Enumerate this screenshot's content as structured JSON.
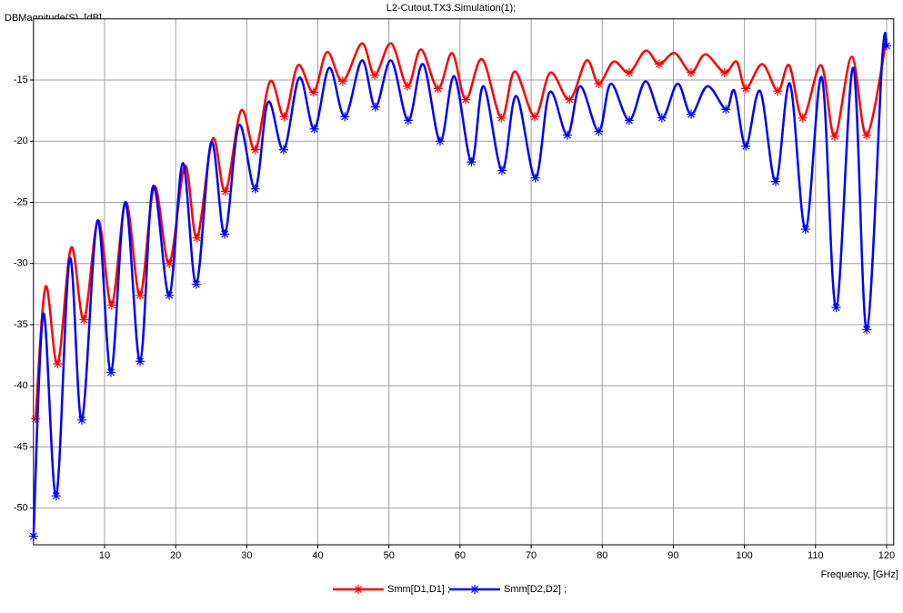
{
  "chart_data": {
    "type": "line",
    "title": "L2-Cutout.TX3.Simulation(1);",
    "y_label": "DBMagnitude(S), [dB]",
    "x_label": "Frequency, [GHz]",
    "xlim": [
      0,
      121
    ],
    "ylim": [
      -53,
      -10
    ],
    "xticks": [
      10,
      20,
      30,
      40,
      50,
      60,
      70,
      80,
      90,
      100,
      110,
      120
    ],
    "yticks": [
      -15,
      -20,
      -25,
      -30,
      -35,
      -40,
      -45,
      -50
    ],
    "grid": true,
    "legend": "bottom",
    "series": [
      {
        "name": "Smm[D1,D1] ;",
        "color": "#ff0000",
        "x": [
          0.3,
          1.7,
          3.4,
          5.3,
          7.1,
          9.1,
          11.0,
          13.0,
          15.0,
          17.0,
          19.1,
          21.3,
          23.0,
          25.2,
          27.0,
          29.2,
          31.2,
          33.3,
          35.3,
          37.2,
          39.4,
          41.3,
          43.5,
          46.2,
          48.0,
          50.3,
          52.6,
          54.5,
          56.9,
          58.9,
          60.8,
          63.1,
          65.8,
          67.7,
          70.5,
          72.7,
          75.4,
          77.8,
          79.5,
          81.6,
          83.8,
          86.1,
          88.0,
          90.2,
          92.5,
          94.5,
          97.2,
          98.9,
          100.2,
          102.5,
          104.7,
          106.3,
          108.2,
          110.8,
          112.7,
          115.1,
          117.2,
          120.0
        ],
        "values": [
          -42.7,
          -31.9,
          -38.2,
          -28.7,
          -34.6,
          -26.5,
          -33.4,
          -25.0,
          -32.6,
          -23.7,
          -30.0,
          -22.0,
          -27.9,
          -19.8,
          -24.1,
          -17.5,
          -20.7,
          -15.1,
          -18.0,
          -13.8,
          -16.0,
          -12.7,
          -15.1,
          -12.0,
          -14.6,
          -12.0,
          -15.5,
          -12.5,
          -15.7,
          -12.8,
          -16.6,
          -13.3,
          -18.1,
          -14.3,
          -18.0,
          -14.4,
          -16.6,
          -13.4,
          -15.3,
          -13.5,
          -14.4,
          -12.6,
          -13.7,
          -12.8,
          -14.4,
          -12.9,
          -14.4,
          -13.5,
          -15.7,
          -13.7,
          -15.9,
          -13.8,
          -18.1,
          -13.8,
          -19.6,
          -13.1,
          -19.5,
          -11.6
        ]
      },
      {
        "name": "Smm[D2,D2] ;",
        "color": "#0000ff",
        "x": [
          0.0,
          1.4,
          3.2,
          5.1,
          6.8,
          9.0,
          10.9,
          12.9,
          15.0,
          16.8,
          19.1,
          21.0,
          22.9,
          25.0,
          26.9,
          28.9,
          31.2,
          33.0,
          35.2,
          37.4,
          39.5,
          41.6,
          43.8,
          46.2,
          48.1,
          50.3,
          52.7,
          54.8,
          57.2,
          59.2,
          61.6,
          63.3,
          65.9,
          67.9,
          70.6,
          72.6,
          75.1,
          76.9,
          79.5,
          81.2,
          83.8,
          86.1,
          88.4,
          90.6,
          92.5,
          94.8,
          97.4,
          98.6,
          100.2,
          102.2,
          104.4,
          106.4,
          108.6,
          110.9,
          112.9,
          115.3,
          117.2,
          119.4,
          120.0
        ],
        "values": [
          -52.3,
          -34.1,
          -49.0,
          -29.6,
          -42.8,
          -26.5,
          -38.9,
          -25.0,
          -38.0,
          -23.7,
          -32.6,
          -21.8,
          -31.7,
          -20.1,
          -27.6,
          -18.7,
          -23.9,
          -16.8,
          -20.7,
          -14.8,
          -19.0,
          -14.0,
          -18.0,
          -13.4,
          -17.2,
          -13.4,
          -18.3,
          -13.7,
          -20.0,
          -14.7,
          -21.7,
          -15.5,
          -22.4,
          -16.3,
          -23.0,
          -16.0,
          -19.5,
          -15.5,
          -19.2,
          -15.3,
          -18.3,
          -15.1,
          -18.1,
          -15.3,
          -17.8,
          -15.5,
          -17.4,
          -15.9,
          -20.4,
          -15.9,
          -23.3,
          -15.3,
          -27.2,
          -14.8,
          -33.6,
          -14.0,
          -35.4,
          -13.1,
          -12.2
        ]
      }
    ]
  }
}
